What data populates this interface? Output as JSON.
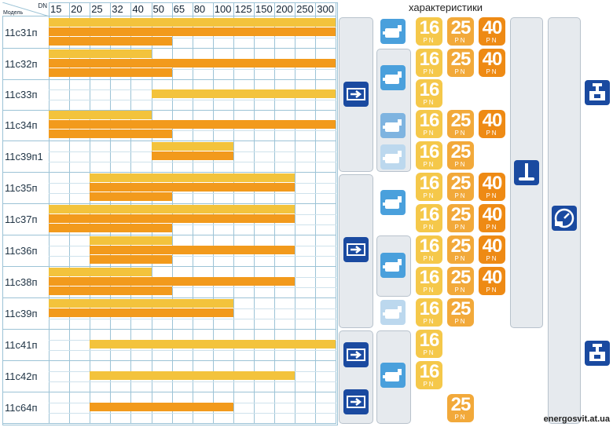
{
  "header": {
    "model_label": "Модель",
    "dn_label": "DN",
    "dn_sizes": [
      "15",
      "20",
      "25",
      "32",
      "40",
      "50",
      "65",
      "80",
      "100",
      "125",
      "150",
      "200",
      "250",
      "300"
    ]
  },
  "characteristics_title": "характеристики",
  "pn_label": "PN",
  "models": [
    {
      "name": "11с31п",
      "bars": [
        [
          "y",
          "15",
          "300"
        ],
        [
          "o",
          "15",
          "300"
        ],
        [
          "o",
          "15",
          "50"
        ]
      ],
      "pn": [
        "16",
        "25",
        "40"
      ]
    },
    {
      "name": "11с32п",
      "bars": [
        [
          "y",
          "15",
          "40"
        ],
        [
          "o",
          "15",
          "300"
        ],
        [
          "o",
          "15",
          "50"
        ]
      ],
      "pn": [
        "16",
        "25",
        "40"
      ]
    },
    {
      "name": "11с33п",
      "bars": [
        [
          "y",
          "50",
          "300"
        ]
      ],
      "pn": [
        "16"
      ]
    },
    {
      "name": "11с34п",
      "bars": [
        [
          "y",
          "15",
          "40"
        ],
        [
          "o",
          "15",
          "300"
        ],
        [
          "o",
          "15",
          "50"
        ]
      ],
      "pn": [
        "16",
        "25",
        "40"
      ]
    },
    {
      "name": "11с39п1",
      "bars": [
        [
          "y",
          "50",
          "100"
        ],
        [
          "o",
          "50",
          "100"
        ]
      ],
      "pn": [
        "16",
        "25"
      ]
    },
    {
      "name": "11с35п",
      "bars": [
        [
          "y",
          "25",
          "200"
        ],
        [
          "o",
          "25",
          "200"
        ],
        [
          "o",
          "25",
          "50"
        ]
      ],
      "pn": [
        "16",
        "25",
        "40"
      ]
    },
    {
      "name": "11с37п",
      "bars": [
        [
          "y",
          "15",
          "200"
        ],
        [
          "o",
          "15",
          "200"
        ],
        [
          "o",
          "15",
          "50"
        ]
      ],
      "pn": [
        "16",
        "25",
        "40"
      ]
    },
    {
      "name": "11с36п",
      "bars": [
        [
          "y",
          "25",
          "50"
        ],
        [
          "o",
          "25",
          "200"
        ],
        [
          "o",
          "25",
          "50"
        ]
      ],
      "pn": [
        "16",
        "25",
        "40"
      ]
    },
    {
      "name": "11с38п",
      "bars": [
        [
          "y",
          "15",
          "40"
        ],
        [
          "o",
          "15",
          "200"
        ],
        [
          "o",
          "15",
          "50"
        ]
      ],
      "pn": [
        "16",
        "25",
        "40"
      ]
    },
    {
      "name": "11с39п",
      "bars": [
        [
          "y",
          "15",
          "100"
        ],
        [
          "o",
          "15",
          "100"
        ]
      ],
      "pn": [
        "16",
        "25"
      ]
    },
    {
      "name": "11с41п",
      "bars": [
        [
          "y",
          "25",
          "300"
        ]
      ],
      "pn": [
        "16"
      ]
    },
    {
      "name": "11с42п",
      "bars": [
        [
          "y",
          "25",
          "200"
        ]
      ],
      "pn": [
        "16"
      ]
    },
    {
      "name": "11с64п",
      "bars": [
        [
          "o",
          "25",
          "100"
        ]
      ],
      "pn": [
        "25"
      ]
    }
  ],
  "colors": {
    "yellow": "#f3c33c",
    "orange": "#f29a1c",
    "pn16": "#f5c84a",
    "pn25": "#f2a93a",
    "pn40": "#ee8a14",
    "icon_dark": "#1a4aa0"
  },
  "watermark": "energosvit.at.ua"
}
